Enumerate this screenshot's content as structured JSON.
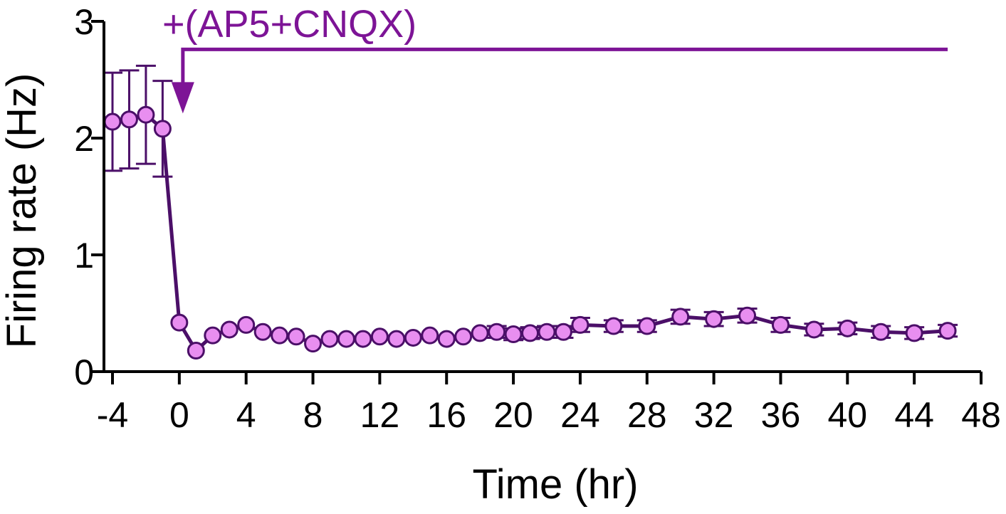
{
  "chart_data": {
    "type": "line",
    "title": "",
    "xlabel": "Time (hr)",
    "ylabel": "Firing rate (Hz)",
    "xlim": [
      -4,
      48
    ],
    "ylim": [
      0,
      3
    ],
    "x_ticks": [
      -4,
      0,
      4,
      8,
      12,
      16,
      20,
      24,
      28,
      32,
      36,
      40,
      44,
      48
    ],
    "y_ticks": [
      0,
      1,
      2,
      3
    ],
    "grid": false,
    "legend": "none",
    "colors": {
      "line": "#4b0f68",
      "marker_fill": "#e88ef0",
      "marker_stroke": "#4b0f68",
      "error_bar": "#4b0f68",
      "annotation": "#7d1496",
      "axis": "#000000"
    },
    "series": [
      {
        "x": [
          -4,
          -3,
          -2,
          -1,
          0,
          1,
          2,
          3,
          4,
          5,
          6,
          7,
          8,
          9,
          10,
          11,
          12,
          13,
          14,
          15,
          16,
          17,
          18,
          19,
          20,
          21,
          22,
          23,
          24,
          26,
          28,
          30,
          32,
          34,
          36,
          38,
          40,
          42,
          44,
          46
        ],
        "y": [
          2.14,
          2.16,
          2.2,
          2.08,
          0.42,
          0.18,
          0.31,
          0.36,
          0.4,
          0.34,
          0.31,
          0.3,
          0.24,
          0.28,
          0.28,
          0.28,
          0.3,
          0.28,
          0.29,
          0.31,
          0.28,
          0.3,
          0.33,
          0.34,
          0.32,
          0.33,
          0.34,
          0.34,
          0.4,
          0.39,
          0.39,
          0.47,
          0.45,
          0.48,
          0.4,
          0.36,
          0.37,
          0.34,
          0.33,
          0.35
        ],
        "error": [
          0.42,
          0.42,
          0.42,
          0.41,
          0,
          0,
          0,
          0,
          0,
          0,
          0,
          0,
          0,
          0,
          0,
          0,
          0,
          0,
          0,
          0,
          0,
          0,
          0,
          0.05,
          0.05,
          0.05,
          0.05,
          0.05,
          0.06,
          0.05,
          0.05,
          0.06,
          0.06,
          0.06,
          0.06,
          0.05,
          0.05,
          0.05,
          0.05,
          0.05
        ]
      }
    ],
    "annotations": [
      {
        "text": "+(AP5+CNQX)",
        "drug_onset_x": 0,
        "bar_end_x": 46,
        "bar_y": 2.76
      }
    ]
  }
}
